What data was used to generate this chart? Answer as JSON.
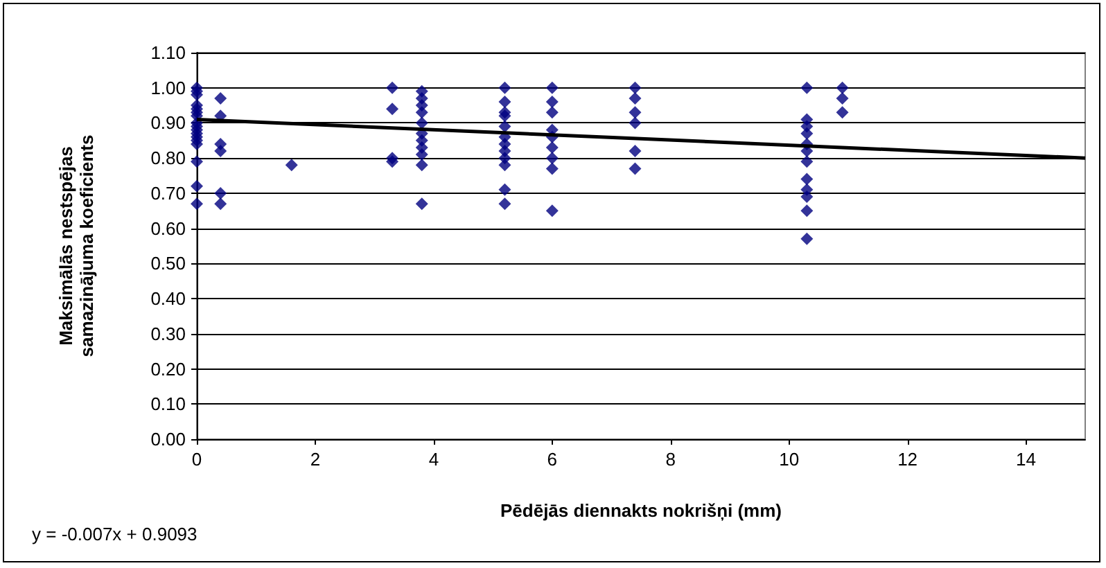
{
  "chart_data": {
    "type": "scatter",
    "xlabel": "Pēdējās diennakts nokrišņi (mm)",
    "ylabel": "Maksimālās nestspējas samazinājuma koeficients",
    "annotations": [
      "y = -0.007x + 0.9093"
    ],
    "series": [
      {
        "color": "#000080",
        "x": [
          0,
          0,
          0,
          0,
          0,
          0,
          0,
          0,
          0,
          0,
          0,
          0,
          0,
          0,
          0,
          0,
          0,
          0.4,
          0.4,
          0.4,
          0.4,
          0.4,
          0.4,
          1.6,
          3.3,
          3.3,
          3.3,
          3.3,
          3.8,
          3.8,
          3.8,
          3.8,
          3.8,
          3.8,
          3.8,
          3.8,
          3.8,
          3.8,
          3.8,
          5.2,
          5.2,
          5.2,
          5.2,
          5.2,
          5.2,
          5.2,
          5.2,
          5.2,
          5.2,
          5.2,
          5.2,
          6.0,
          6.0,
          6.0,
          6.0,
          6.0,
          6.0,
          6.0,
          6.0,
          6.0,
          7.4,
          7.4,
          7.4,
          7.4,
          7.4,
          7.4,
          10.3,
          10.3,
          10.3,
          10.3,
          10.3,
          10.3,
          10.3,
          10.3,
          10.3,
          10.3,
          10.3,
          10.3,
          10.9,
          10.9,
          10.9
        ],
        "values": [
          1.0,
          0.99,
          0.98,
          0.95,
          0.94,
          0.93,
          0.92,
          0.9,
          0.89,
          0.88,
          0.87,
          0.86,
          0.85,
          0.84,
          0.79,
          0.72,
          0.67,
          0.97,
          0.92,
          0.84,
          0.82,
          0.7,
          0.67,
          0.78,
          1.0,
          0.94,
          0.8,
          0.79,
          0.99,
          0.97,
          0.95,
          0.93,
          0.9,
          0.87,
          0.85,
          0.83,
          0.81,
          0.78,
          0.67,
          1.0,
          0.96,
          0.93,
          0.92,
          0.89,
          0.86,
          0.84,
          0.82,
          0.8,
          0.78,
          0.71,
          0.67,
          1.0,
          0.96,
          0.93,
          0.88,
          0.86,
          0.83,
          0.8,
          0.77,
          0.65,
          1.0,
          0.97,
          0.93,
          0.9,
          0.82,
          0.77,
          1.0,
          0.91,
          0.89,
          0.87,
          0.84,
          0.82,
          0.79,
          0.74,
          0.71,
          0.69,
          0.65,
          0.57,
          1.0,
          0.97,
          0.93
        ]
      },
      {
        "type": "line",
        "marker": "none",
        "color": "#000000",
        "x": [
          0,
          15
        ],
        "values": [
          0.91,
          0.8
        ]
      }
    ],
    "xlim": [
      0,
      15
    ],
    "xticks": [
      0,
      2,
      4,
      6,
      8,
      10,
      12,
      14
    ],
    "ylim": [
      0,
      1.1
    ],
    "yticks": [
      {
        "value": 0,
        "label": "0.00"
      },
      {
        "value": 0.1,
        "label": "0.10"
      },
      {
        "value": 0.2,
        "label": "0.20"
      },
      {
        "value": 0.3,
        "label": "0.30"
      },
      {
        "value": 0.4,
        "label": "0.40"
      },
      {
        "value": 0.5,
        "label": "0.50"
      },
      {
        "value": 0.6,
        "label": "0.60"
      },
      {
        "value": 0.7,
        "label": "0.70"
      },
      {
        "value": 0.8,
        "label": "0.80"
      },
      {
        "value": 0.9,
        "label": "0.90"
      },
      {
        "value": 1.0,
        "label": "1.00"
      },
      {
        "value": 1.1,
        "label": "1.10"
      }
    ],
    "grid": "y",
    "marker": "diamond"
  }
}
